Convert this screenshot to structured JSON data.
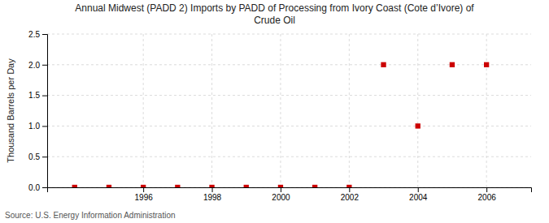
{
  "chart_data": {
    "type": "scatter",
    "title": "Annual Midwest (PADD 2) Imports by PADD of Processing from Ivory Coast (Cote d’Ivore) of\nCrude Oil",
    "y_label": "Thousand Barrels per Day",
    "source": "Source: U.S. Energy Information Administration",
    "x": [
      1994,
      1995,
      1996,
      1997,
      1998,
      1999,
      2000,
      2001,
      2002,
      2003,
      2004,
      2005,
      2006
    ],
    "values": [
      0.0,
      0.0,
      0.0,
      0.0,
      0.0,
      0.0,
      0.0,
      0.0,
      0.0,
      2.0,
      1.0,
      2.0,
      2.0
    ],
    "color": "#cc0000",
    "marker": "square",
    "xlim": [
      1993.2,
      2007.3
    ],
    "xticks": [
      1996,
      1998,
      2000,
      2002,
      2004,
      2006
    ],
    "ylim": [
      0,
      2.5
    ],
    "yticks": [
      {
        "value": 0.0,
        "label": "0.0"
      },
      0.5,
      {
        "value": 1.0,
        "label": "1.0"
      },
      1.5,
      {
        "value": 2.0,
        "label": "2.0"
      },
      2.5
    ],
    "grid": true
  }
}
